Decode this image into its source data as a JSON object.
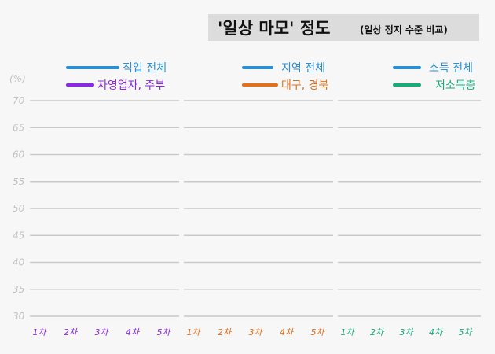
{
  "chart_data": {
    "type": "line",
    "title": "'일상 마모' 정도",
    "subtitle": "(일상 정지 수준 비교)",
    "ylabel": "(%)",
    "ylim": [
      30,
      70
    ],
    "yticks": [
      30,
      35,
      40,
      45,
      50,
      55,
      60,
      65,
      70
    ],
    "grid": true,
    "categories": [
      "1차",
      "2차",
      "3차",
      "4차",
      "5차"
    ],
    "panels": [
      {
        "tick_color": "#8a2be2",
        "series": [
          {
            "name": "직업 전체",
            "color": "#2b8fd6",
            "values": []
          },
          {
            "name": "자영업자, 주부",
            "color": "#8a2be2",
            "values": []
          }
        ]
      },
      {
        "tick_color": "#e07020",
        "series": [
          {
            "name": "지역 전체",
            "color": "#2b8fd6",
            "values": []
          },
          {
            "name": "대구, 경북",
            "color": "#e07020",
            "values": []
          }
        ]
      },
      {
        "tick_color": "#1aaa7a",
        "series": [
          {
            "name": "소득 전체",
            "color": "#2b8fd6",
            "values": []
          },
          {
            "name": "저소득층",
            "color": "#1aaa7a",
            "values": []
          }
        ]
      }
    ]
  }
}
